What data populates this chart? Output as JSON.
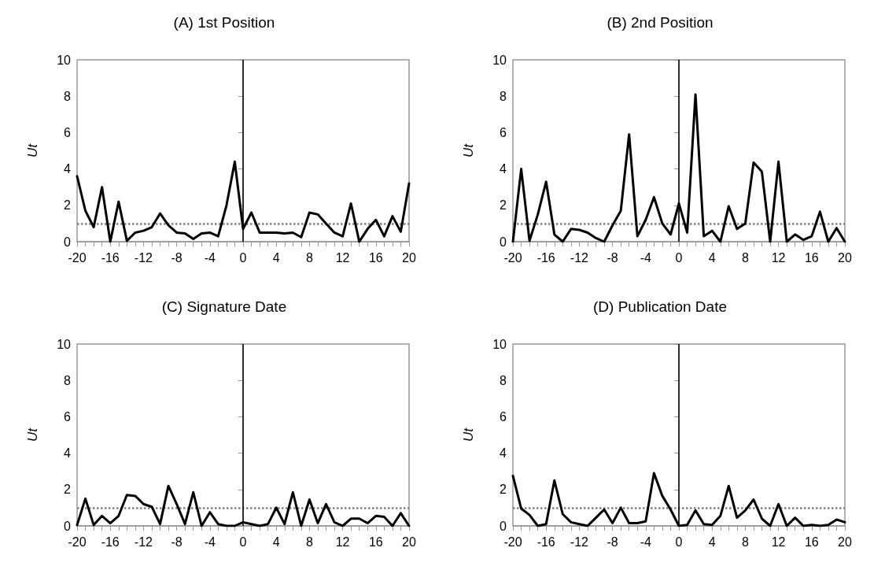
{
  "chart_data": [
    {
      "type": "line",
      "title": "(A) 1st Position",
      "ylabel": "Ut",
      "xlim": [
        -20,
        20
      ],
      "ylim": [
        0,
        10
      ],
      "yticks": [
        0,
        2,
        4,
        6,
        8,
        10
      ],
      "xticks": [
        -20,
        {
          "value": -19,
          "label": null
        },
        {
          "value": -18,
          "label": null
        },
        {
          "value": -17,
          "label": null
        },
        -16,
        {
          "value": -15,
          "label": null
        },
        {
          "value": -14,
          "label": null
        },
        {
          "value": -13,
          "label": null
        },
        -12,
        {
          "value": -11,
          "label": null
        },
        {
          "value": -10,
          "label": null
        },
        {
          "value": -9,
          "label": null
        },
        -8,
        {
          "value": -7,
          "label": null
        },
        {
          "value": -6,
          "label": null
        },
        {
          "value": -5,
          "label": null
        },
        -4,
        {
          "value": -3,
          "label": null
        },
        {
          "value": -2,
          "label": null
        },
        {
          "value": -1,
          "label": null
        },
        0,
        {
          "value": 1,
          "label": null
        },
        {
          "value": 2,
          "label": null
        },
        {
          "value": 3,
          "label": null
        },
        4,
        {
          "value": 5,
          "label": null
        },
        {
          "value": 6,
          "label": null
        },
        {
          "value": 7,
          "label": null
        },
        8,
        {
          "value": 9,
          "label": null
        },
        {
          "value": 10,
          "label": null
        },
        {
          "value": 11,
          "label": null
        },
        12,
        {
          "value": 13,
          "label": null
        },
        {
          "value": 14,
          "label": null
        },
        {
          "value": 15,
          "label": null
        },
        16,
        {
          "value": 17,
          "label": null
        },
        {
          "value": 18,
          "label": null
        },
        {
          "value": 19,
          "label": null
        },
        20
      ],
      "grid": false,
      "marker": "none",
      "line_style": "solid",
      "x": [
        -20,
        -19,
        -18,
        -17,
        -16,
        -15,
        -14,
        -13,
        -12,
        -11,
        -10,
        -9,
        -8,
        -7,
        -6,
        -5,
        -4,
        -3,
        -2,
        -1,
        0,
        1,
        2,
        3,
        4,
        5,
        6,
        7,
        8,
        9,
        10,
        11,
        12,
        13,
        14,
        15,
        16,
        17,
        18,
        19,
        20
      ],
      "series": [
        {
          "color": "#000000",
          "values": [
            3.6,
            1.7,
            0.8,
            3.0,
            0,
            2.2,
            0.05,
            0.5,
            0.6,
            0.8,
            1.55,
            0.9,
            0.5,
            0.45,
            0.15,
            0.45,
            0.5,
            0.3,
            2.0,
            4.4,
            0.7,
            1.6,
            0.5,
            0.5,
            0.5,
            0.45,
            0.5,
            0.25,
            1.6,
            1.5,
            1.0,
            0.5,
            0.3,
            2.1,
            0,
            0.7,
            1.2,
            0.3,
            1.4,
            0.55,
            3.2
          ]
        }
      ],
      "ref_lines": [
        {
          "axis": "y",
          "value": 1,
          "color": "#808080",
          "line_style": "dotted"
        },
        {
          "axis": "x",
          "value": 0,
          "color": "#000000",
          "line_style": "solid"
        }
      ]
    },
    {
      "type": "line",
      "title": "(B) 2nd Position",
      "ylabel": "Ut",
      "xlim": [
        -20,
        20
      ],
      "ylim": [
        0,
        10
      ],
      "yticks": [
        0,
        2,
        4,
        6,
        8,
        10
      ],
      "xticks": [
        -20,
        {
          "value": -19,
          "label": null
        },
        {
          "value": -18,
          "label": null
        },
        {
          "value": -17,
          "label": null
        },
        -16,
        {
          "value": -15,
          "label": null
        },
        {
          "value": -14,
          "label": null
        },
        {
          "value": -13,
          "label": null
        },
        -12,
        {
          "value": -11,
          "label": null
        },
        {
          "value": -10,
          "label": null
        },
        {
          "value": -9,
          "label": null
        },
        -8,
        {
          "value": -7,
          "label": null
        },
        {
          "value": -6,
          "label": null
        },
        {
          "value": -5,
          "label": null
        },
        -4,
        {
          "value": -3,
          "label": null
        },
        {
          "value": -2,
          "label": null
        },
        {
          "value": -1,
          "label": null
        },
        0,
        {
          "value": 1,
          "label": null
        },
        {
          "value": 2,
          "label": null
        },
        {
          "value": 3,
          "label": null
        },
        4,
        {
          "value": 5,
          "label": null
        },
        {
          "value": 6,
          "label": null
        },
        {
          "value": 7,
          "label": null
        },
        8,
        {
          "value": 9,
          "label": null
        },
        {
          "value": 10,
          "label": null
        },
        {
          "value": 11,
          "label": null
        },
        12,
        {
          "value": 13,
          "label": null
        },
        {
          "value": 14,
          "label": null
        },
        {
          "value": 15,
          "label": null
        },
        16,
        {
          "value": 17,
          "label": null
        },
        {
          "value": 18,
          "label": null
        },
        {
          "value": 19,
          "label": null
        },
        20
      ],
      "grid": false,
      "marker": "none",
      "line_style": "solid",
      "x": [
        -20,
        -19,
        -18,
        -17,
        -16,
        -15,
        -14,
        -13,
        -12,
        -11,
        -10,
        -9,
        -8,
        -7,
        -6,
        -5,
        -4,
        -3,
        -2,
        -1,
        0,
        1,
        2,
        3,
        4,
        5,
        6,
        7,
        8,
        9,
        10,
        11,
        12,
        13,
        14,
        15,
        16,
        17,
        18,
        19,
        20
      ],
      "series": [
        {
          "color": "#000000",
          "values": [
            0,
            4.0,
            0.05,
            1.5,
            3.3,
            0.4,
            0,
            0.7,
            0.65,
            0.5,
            0.2,
            0,
            0.9,
            1.7,
            5.9,
            0.3,
            1.2,
            2.45,
            1.0,
            0.4,
            2.1,
            0.5,
            8.1,
            0.3,
            0.6,
            0,
            1.95,
            0.7,
            1.0,
            4.35,
            3.85,
            0,
            4.4,
            0,
            0.4,
            0.1,
            0.3,
            1.65,
            0,
            0.75,
            0
          ]
        }
      ],
      "ref_lines": [
        {
          "axis": "y",
          "value": 1,
          "color": "#808080",
          "line_style": "dotted"
        },
        {
          "axis": "x",
          "value": 0,
          "color": "#000000",
          "line_style": "solid"
        }
      ]
    },
    {
      "type": "line",
      "title": "(C) Signature Date",
      "ylabel": "Ut",
      "xlim": [
        -20,
        20
      ],
      "ylim": [
        0,
        10
      ],
      "yticks": [
        0,
        2,
        4,
        6,
        8,
        10
      ],
      "xticks": [
        -20,
        {
          "value": -19,
          "label": null
        },
        {
          "value": -18,
          "label": null
        },
        {
          "value": -17,
          "label": null
        },
        -16,
        {
          "value": -15,
          "label": null
        },
        {
          "value": -14,
          "label": null
        },
        {
          "value": -13,
          "label": null
        },
        -12,
        {
          "value": -11,
          "label": null
        },
        {
          "value": -10,
          "label": null
        },
        {
          "value": -9,
          "label": null
        },
        -8,
        {
          "value": -7,
          "label": null
        },
        {
          "value": -6,
          "label": null
        },
        {
          "value": -5,
          "label": null
        },
        -4,
        {
          "value": -3,
          "label": null
        },
        {
          "value": -2,
          "label": null
        },
        {
          "value": -1,
          "label": null
        },
        0,
        {
          "value": 1,
          "label": null
        },
        {
          "value": 2,
          "label": null
        },
        {
          "value": 3,
          "label": null
        },
        4,
        {
          "value": 5,
          "label": null
        },
        {
          "value": 6,
          "label": null
        },
        {
          "value": 7,
          "label": null
        },
        8,
        {
          "value": 9,
          "label": null
        },
        {
          "value": 10,
          "label": null
        },
        {
          "value": 11,
          "label": null
        },
        12,
        {
          "value": 13,
          "label": null
        },
        {
          "value": 14,
          "label": null
        },
        {
          "value": 15,
          "label": null
        },
        16,
        {
          "value": 17,
          "label": null
        },
        {
          "value": 18,
          "label": null
        },
        {
          "value": 19,
          "label": null
        },
        20
      ],
      "grid": false,
      "marker": "none",
      "line_style": "solid",
      "x": [
        -20,
        -19,
        -18,
        -17,
        -16,
        -15,
        -14,
        -13,
        -12,
        -11,
        -10,
        -9,
        -8,
        -7,
        -6,
        -5,
        -4,
        -3,
        -2,
        -1,
        0,
        1,
        2,
        3,
        4,
        5,
        6,
        7,
        8,
        9,
        10,
        11,
        12,
        13,
        14,
        15,
        16,
        17,
        18,
        19,
        20
      ],
      "series": [
        {
          "color": "#000000",
          "values": [
            0.05,
            1.5,
            0.05,
            0.55,
            0.15,
            0.55,
            1.7,
            1.65,
            1.2,
            1.05,
            0.1,
            2.2,
            1.2,
            0.1,
            1.85,
            0,
            0.75,
            0.1,
            0,
            0,
            0.2,
            0.1,
            0,
            0.1,
            1.0,
            0.1,
            1.85,
            0,
            1.45,
            0.15,
            1.2,
            0.2,
            0,
            0.4,
            0.4,
            0.15,
            0.55,
            0.5,
            0,
            0.7,
            0
          ]
        }
      ],
      "ref_lines": [
        {
          "axis": "y",
          "value": 1,
          "color": "#808080",
          "line_style": "dotted"
        },
        {
          "axis": "x",
          "value": 0,
          "color": "#000000",
          "line_style": "solid"
        }
      ]
    },
    {
      "type": "line",
      "title": "(D) Publication Date",
      "ylabel": "Ut",
      "xlim": [
        -20,
        20
      ],
      "ylim": [
        0,
        10
      ],
      "yticks": [
        0,
        2,
        4,
        6,
        8,
        10
      ],
      "xticks": [
        -20,
        {
          "value": -19,
          "label": null
        },
        {
          "value": -18,
          "label": null
        },
        {
          "value": -17,
          "label": null
        },
        -16,
        {
          "value": -15,
          "label": null
        },
        {
          "value": -14,
          "label": null
        },
        {
          "value": -13,
          "label": null
        },
        -12,
        {
          "value": -11,
          "label": null
        },
        {
          "value": -10,
          "label": null
        },
        {
          "value": -9,
          "label": null
        },
        -8,
        {
          "value": -7,
          "label": null
        },
        {
          "value": -6,
          "label": null
        },
        {
          "value": -5,
          "label": null
        },
        -4,
        {
          "value": -3,
          "label": null
        },
        {
          "value": -2,
          "label": null
        },
        {
          "value": -1,
          "label": null
        },
        0,
        {
          "value": 1,
          "label": null
        },
        {
          "value": 2,
          "label": null
        },
        {
          "value": 3,
          "label": null
        },
        4,
        {
          "value": 5,
          "label": null
        },
        {
          "value": 6,
          "label": null
        },
        {
          "value": 7,
          "label": null
        },
        8,
        {
          "value": 9,
          "label": null
        },
        {
          "value": 10,
          "label": null
        },
        {
          "value": 11,
          "label": null
        },
        12,
        {
          "value": 13,
          "label": null
        },
        {
          "value": 14,
          "label": null
        },
        {
          "value": 15,
          "label": null
        },
        16,
        {
          "value": 17,
          "label": null
        },
        {
          "value": 18,
          "label": null
        },
        {
          "value": 19,
          "label": null
        },
        20
      ],
      "grid": false,
      "marker": "none",
      "line_style": "solid",
      "x": [
        -20,
        -19,
        -18,
        -17,
        -16,
        -15,
        -14,
        -13,
        -12,
        -11,
        -10,
        -9,
        -8,
        -7,
        -6,
        -5,
        -4,
        -3,
        -2,
        -1,
        0,
        1,
        2,
        3,
        4,
        5,
        6,
        7,
        8,
        9,
        10,
        11,
        12,
        13,
        14,
        15,
        16,
        17,
        18,
        19,
        20
      ],
      "series": [
        {
          "color": "#000000",
          "values": [
            2.75,
            0.95,
            0.6,
            0,
            0.1,
            2.5,
            0.65,
            0.2,
            0.1,
            0,
            0.45,
            0.9,
            0.15,
            1.0,
            0.15,
            0.15,
            0.25,
            2.9,
            1.65,
            0.9,
            0,
            0.05,
            0.85,
            0.1,
            0.05,
            0.55,
            2.2,
            0.45,
            0.85,
            1.45,
            0.4,
            0,
            1.2,
            0,
            0.45,
            0,
            0.05,
            0,
            0.05,
            0.35,
            0.2
          ]
        }
      ],
      "ref_lines": [
        {
          "axis": "y",
          "value": 1,
          "color": "#808080",
          "line_style": "dotted"
        },
        {
          "axis": "x",
          "value": 0,
          "color": "#000000",
          "line_style": "solid"
        }
      ]
    }
  ]
}
